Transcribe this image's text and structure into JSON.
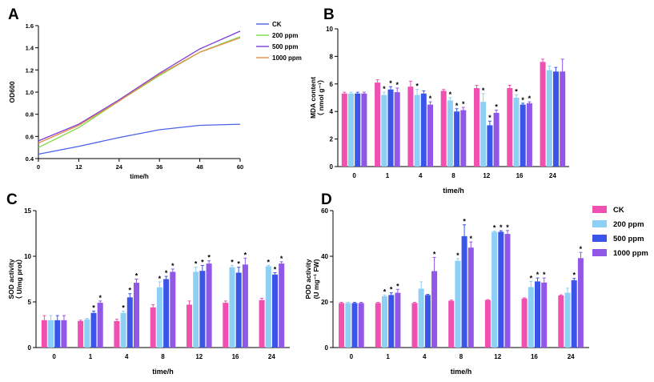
{
  "chart_data": [
    {
      "panel": "A",
      "type": "line",
      "title": "",
      "xlabel": "time/h",
      "ylabel": "OD600",
      "xlim": [
        0,
        60
      ],
      "ylim": [
        0.4,
        1.6
      ],
      "xticks": [
        "0",
        "12",
        "24",
        "36",
        "48",
        "60"
      ],
      "yticks": [
        "0.4",
        "0.6",
        "0.8",
        "1.0",
        "1.2",
        "1.4",
        "1.6"
      ],
      "x": [
        0,
        12,
        24,
        36,
        48,
        60
      ],
      "series": [
        {
          "name": "CK",
          "color": "#4a62e6",
          "values": [
            0.44,
            0.51,
            0.59,
            0.66,
            0.7,
            0.71
          ]
        },
        {
          "name": "200 ppm",
          "color": "#7fd84a",
          "values": [
            0.5,
            0.68,
            0.92,
            1.15,
            1.36,
            1.5
          ]
        },
        {
          "name": "500 ppm",
          "color": "#7a3bd8",
          "values": [
            0.56,
            0.71,
            0.93,
            1.17,
            1.39,
            1.55
          ]
        },
        {
          "name": "1000 ppm",
          "color": "#e58b4a",
          "values": [
            0.54,
            0.7,
            0.92,
            1.16,
            1.36,
            1.49
          ]
        }
      ]
    },
    {
      "panel": "B",
      "type": "bar",
      "xlabel": "time/h",
      "ylabel": [
        "MDA content",
        "（ nmol g⁻¹）"
      ],
      "ylim": [
        0,
        10
      ],
      "yticks": [
        "0",
        "2",
        "4",
        "6",
        "8",
        "10"
      ],
      "categories": [
        "0",
        "1",
        "4",
        "8",
        "12",
        "16",
        "24"
      ],
      "series": [
        {
          "name": "CK",
          "values": [
            5.3,
            6.1,
            5.8,
            5.5,
            5.7,
            5.7,
            7.6
          ],
          "errors": [
            0.1,
            0.2,
            0.4,
            0.1,
            0.2,
            0.2,
            0.2
          ],
          "sig": [
            0,
            0,
            0,
            0,
            0,
            0,
            0
          ]
        },
        {
          "name": "200 ppm",
          "values": [
            5.3,
            5.2,
            5.2,
            4.8,
            4.7,
            5.0,
            7.0
          ],
          "errors": [
            0.1,
            0.2,
            0.4,
            0.2,
            0.6,
            0.2,
            0.3
          ],
          "sig": [
            0,
            1,
            1,
            1,
            1,
            1,
            0
          ]
        },
        {
          "name": "500 ppm",
          "values": [
            5.3,
            5.6,
            5.3,
            4.0,
            3.0,
            4.5,
            6.9
          ],
          "errors": [
            0.1,
            0.2,
            0.2,
            0.2,
            0.3,
            0.1,
            0.3
          ],
          "sig": [
            0,
            1,
            0,
            1,
            1,
            1,
            0
          ]
        },
        {
          "name": "1000 ppm",
          "values": [
            5.3,
            5.4,
            4.5,
            4.1,
            3.9,
            4.6,
            6.9
          ],
          "errors": [
            0.1,
            0.3,
            0.2,
            0.2,
            0.2,
            0.1,
            0.9
          ],
          "sig": [
            0,
            1,
            1,
            1,
            1,
            1,
            0
          ]
        }
      ]
    },
    {
      "panel": "C",
      "type": "bar",
      "xlabel": "time/h",
      "ylabel": [
        "SOD activity",
        "（ U/mg prot）"
      ],
      "ylim": [
        0,
        15
      ],
      "yticks": [
        "0",
        "5",
        "10",
        "15"
      ],
      "categories": [
        "0",
        "1",
        "4",
        "8",
        "12",
        "16",
        "24"
      ],
      "series": [
        {
          "name": "CK",
          "values": [
            3.0,
            2.9,
            2.9,
            4.4,
            4.7,
            4.9,
            5.2
          ],
          "errors": [
            0.5,
            0.1,
            0.2,
            0.3,
            0.4,
            0.2,
            0.2
          ],
          "sig": [
            0,
            0,
            0,
            0,
            0,
            0,
            0
          ]
        },
        {
          "name": "200 ppm",
          "values": [
            3.0,
            3.1,
            3.8,
            6.6,
            8.3,
            8.8,
            8.9
          ],
          "errors": [
            0.5,
            0.1,
            0.2,
            0.6,
            0.5,
            0.2,
            0.1
          ],
          "sig": [
            0,
            0,
            1,
            1,
            1,
            1,
            1
          ]
        },
        {
          "name": "500 ppm",
          "values": [
            3.0,
            3.8,
            5.5,
            7.5,
            8.4,
            8.2,
            8.0
          ],
          "errors": [
            0.5,
            0.2,
            0.4,
            0.3,
            0.6,
            0.6,
            0.2
          ],
          "sig": [
            0,
            1,
            1,
            1,
            1,
            1,
            1
          ]
        },
        {
          "name": "1000 ppm",
          "values": [
            3.0,
            4.9,
            7.1,
            8.3,
            9.2,
            9.1,
            9.2
          ],
          "errors": [
            0.5,
            0.2,
            0.4,
            0.3,
            0.3,
            0.7,
            0.2
          ],
          "sig": [
            0,
            1,
            1,
            1,
            1,
            1,
            1
          ]
        }
      ]
    },
    {
      "panel": "D",
      "type": "bar",
      "xlabel": "time/h",
      "ylabel": [
        "POD activity",
        "(U mg⁻¹ FW)"
      ],
      "ylim": [
        0,
        60
      ],
      "yticks": [
        "0",
        "20",
        "40",
        "60"
      ],
      "categories": [
        "0",
        "1",
        "4",
        "8",
        "12",
        "16",
        "24"
      ],
      "legend": {
        "position": "top-right"
      },
      "series": [
        {
          "name": "CK",
          "values": [
            19.5,
            19.5,
            19.5,
            20.5,
            20.8,
            21.5,
            22.8
          ],
          "errors": [
            0.3,
            0.3,
            0.3,
            0.3,
            0.2,
            0.3,
            0.3
          ],
          "sig": [
            0,
            0,
            0,
            0,
            0,
            0,
            0
          ]
        },
        {
          "name": "200 ppm",
          "values": [
            19.5,
            22.5,
            25.8,
            38.0,
            50.7,
            26.5,
            24.0
          ],
          "errors": [
            0.3,
            0.5,
            3.0,
            1.0,
            0.3,
            2.5,
            2.0
          ],
          "sig": [
            0,
            1,
            0,
            1,
            1,
            1,
            0
          ]
        },
        {
          "name": "500 ppm",
          "values": [
            19.5,
            23.0,
            23.0,
            48.8,
            50.7,
            29.0,
            29.5
          ],
          "errors": [
            0.3,
            1.0,
            0.3,
            5.0,
            0.5,
            1.5,
            0.8
          ],
          "sig": [
            0,
            1,
            0,
            1,
            1,
            1,
            1
          ]
        },
        {
          "name": "1000 ppm",
          "values": [
            19.5,
            24.0,
            33.5,
            43.8,
            49.8,
            28.5,
            39.2
          ],
          "errors": [
            0.3,
            1.5,
            6.0,
            2.5,
            1.5,
            2.0,
            2.5
          ],
          "sig": [
            0,
            1,
            1,
            1,
            1,
            1,
            1
          ]
        }
      ]
    }
  ],
  "panel_labels": [
    "A",
    "B",
    "C",
    "D"
  ],
  "bar_colors": [
    "#f050b0",
    "#8ecff5",
    "#3a55e8",
    "#9158e8"
  ],
  "legend_labels": [
    "CK",
    "200 ppm",
    "500 ppm",
    "1000 ppm"
  ]
}
